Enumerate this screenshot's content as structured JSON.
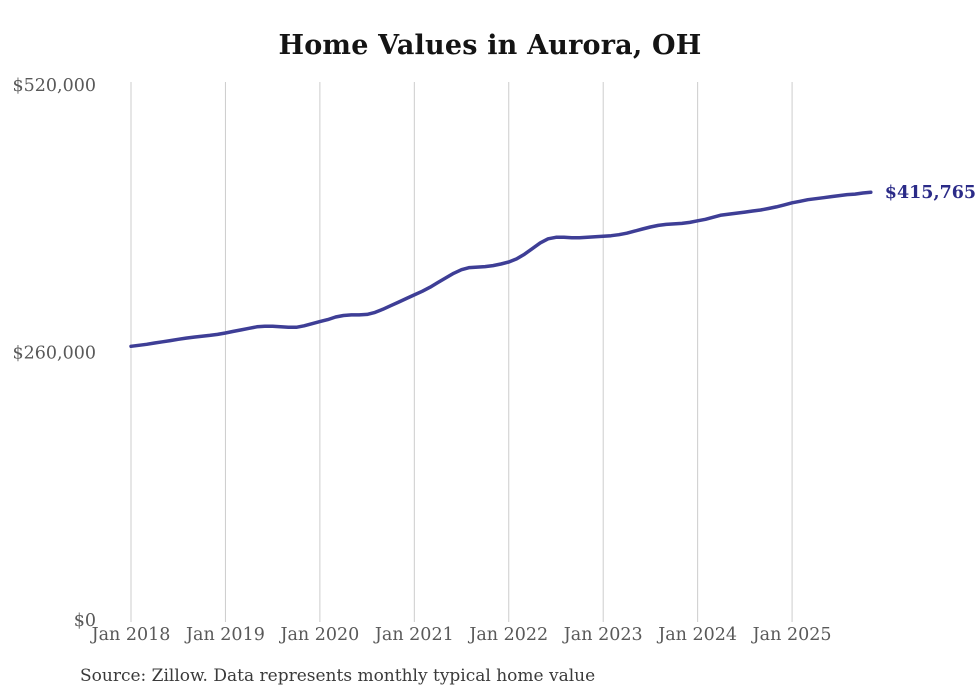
{
  "chart": {
    "title": "Home Values in Aurora, OH",
    "source": "Source: Zillow. Data represents monthly typical home value",
    "colors": {
      "line": "#3e3e96",
      "end_label": "#2b2b88",
      "grid": "#cccccc",
      "axis_text": "#595959",
      "title_text": "#141414",
      "source_text": "#3a3a3a",
      "background": "#ffffff"
    }
  },
  "chart_data": {
    "type": "line",
    "title": "Home Values in Aurora, OH",
    "xlabel": "",
    "ylabel": "",
    "ylim": [
      0,
      520000
    ],
    "grid": "vertical",
    "legend": "none",
    "final_value_label": "$415,765",
    "final_value": 415765,
    "y_ticks": [
      {
        "label": "$520,000",
        "value": 520000
      },
      {
        "label": "$260,000",
        "value": 260000
      },
      {
        "label": "$0",
        "value": 0
      }
    ],
    "x_ticks": [
      {
        "label": "Jan 2018",
        "index": 0
      },
      {
        "label": "Jan 2019",
        "index": 12
      },
      {
        "label": "Jan 2020",
        "index": 24
      },
      {
        "label": "Jan 2021",
        "index": 36
      },
      {
        "label": "Jan 2022",
        "index": 48
      },
      {
        "label": "Jan 2023",
        "index": 60
      },
      {
        "label": "Jan 2024",
        "index": 72
      },
      {
        "label": "Jan 2025",
        "index": 84
      }
    ],
    "months": [
      "2018-01",
      "2018-02",
      "2018-03",
      "2018-04",
      "2018-05",
      "2018-06",
      "2018-07",
      "2018-08",
      "2018-09",
      "2018-10",
      "2018-11",
      "2018-12",
      "2019-01",
      "2019-02",
      "2019-03",
      "2019-04",
      "2019-05",
      "2019-06",
      "2019-07",
      "2019-08",
      "2019-09",
      "2019-10",
      "2019-11",
      "2019-12",
      "2020-01",
      "2020-02",
      "2020-03",
      "2020-04",
      "2020-05",
      "2020-06",
      "2020-07",
      "2020-08",
      "2020-09",
      "2020-10",
      "2020-11",
      "2020-12",
      "2021-01",
      "2021-02",
      "2021-03",
      "2021-04",
      "2021-05",
      "2021-06",
      "2021-07",
      "2021-08",
      "2021-09",
      "2021-10",
      "2021-11",
      "2021-12",
      "2022-01",
      "2022-02",
      "2022-03",
      "2022-04",
      "2022-05",
      "2022-06",
      "2022-07",
      "2022-08",
      "2022-09",
      "2022-10",
      "2022-11",
      "2022-12",
      "2023-01",
      "2023-02",
      "2023-03",
      "2023-04",
      "2023-05",
      "2023-06",
      "2023-07",
      "2023-08",
      "2023-09",
      "2023-10",
      "2023-11",
      "2023-12",
      "2024-01",
      "2024-02",
      "2024-03",
      "2024-04",
      "2024-05",
      "2024-06",
      "2024-07",
      "2024-08",
      "2024-09",
      "2024-10",
      "2024-11",
      "2024-12",
      "2025-01",
      "2025-02",
      "2025-03",
      "2025-04",
      "2025-05",
      "2025-06",
      "2025-07",
      "2025-08",
      "2025-09",
      "2025-10",
      "2025-11"
    ],
    "values": [
      266000,
      267000,
      268000,
      269200,
      270400,
      271600,
      272800,
      274000,
      275000,
      275800,
      276600,
      277600,
      279000,
      280500,
      282000,
      283500,
      285000,
      285500,
      285500,
      285000,
      284500,
      284500,
      286000,
      288000,
      290000,
      292000,
      294500,
      296000,
      296500,
      296500,
      297000,
      299000,
      302000,
      305500,
      309000,
      312500,
      316000,
      319500,
      323500,
      328000,
      332500,
      337000,
      340500,
      342500,
      343000,
      343500,
      344500,
      346000,
      348000,
      351000,
      355500,
      361000,
      366500,
      370500,
      372000,
      372000,
      371500,
      371500,
      372000,
      372500,
      373000,
      373500,
      374500,
      376000,
      378000,
      380000,
      382000,
      383500,
      384500,
      385000,
      385500,
      386500,
      388000,
      389500,
      391500,
      393500,
      394500,
      395500,
      396500,
      397500,
      398500,
      400000,
      401500,
      403500,
      405500,
      407000,
      408500,
      409500,
      410500,
      411500,
      412500,
      413500,
      414000,
      415000,
      415765
    ]
  }
}
